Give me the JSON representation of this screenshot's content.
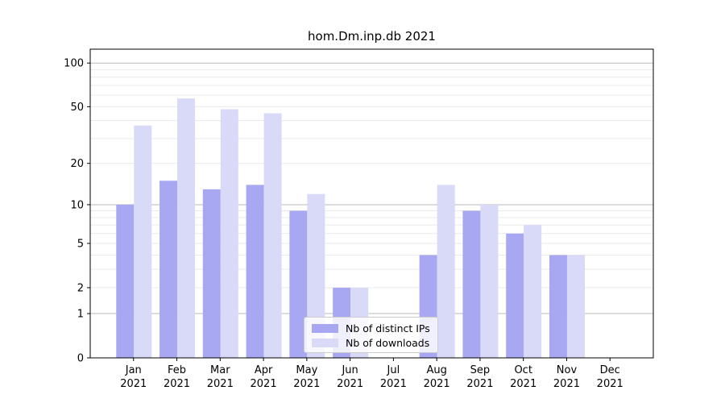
{
  "title": "hom.Dm.inp.db 2021",
  "chart_data": {
    "type": "bar",
    "title": "hom.Dm.inp.db 2021",
    "categories": [
      "Jan 2021",
      "Feb 2021",
      "Mar 2021",
      "Apr 2021",
      "May 2021",
      "Jun 2021",
      "Jul 2021",
      "Aug 2021",
      "Sep 2021",
      "Oct 2021",
      "Nov 2021",
      "Dec 2021"
    ],
    "series": [
      {
        "name": "Nb of distinct IPs",
        "color": "#a8a8f2",
        "values": [
          10,
          15,
          13,
          14,
          9,
          2,
          0,
          4,
          9,
          6,
          4,
          0
        ]
      },
      {
        "name": "Nb of downloads",
        "color": "#d9d9f8",
        "values": [
          37,
          57,
          48,
          45,
          12,
          2,
          0,
          14,
          10,
          7,
          4,
          0
        ]
      }
    ],
    "yscale": "log1p",
    "ylim": [
      0,
      125
    ],
    "yticks": [
      0,
      1,
      2,
      5,
      10,
      20,
      50,
      100
    ],
    "grid": "horizontal major and minor log gridlines",
    "legend_position": "lower center"
  },
  "colors": {
    "background": "#ffffff",
    "axis_frame": "#000000",
    "major_gridline": "#b9b9b9",
    "minor_gridline": "#eaeaea",
    "legend_border": "#cccccc",
    "tick_label": "#000000"
  }
}
